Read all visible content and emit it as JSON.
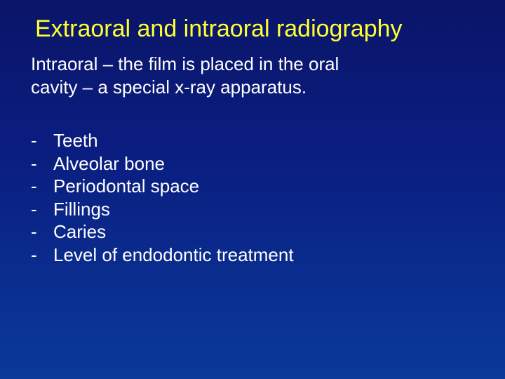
{
  "title": "Extraoral and intraoral radiography",
  "intro_line1": "Intraoral – the film is placed in the oral",
  "intro_line2": "cavity – a special x-ray apparatus.",
  "bullet_char": "-",
  "items": {
    "i0": "Teeth",
    "i1": "Alveolar bone",
    "i2": "Periodontal space",
    "i3": "Fillings",
    "i4": "Caries",
    "i5": "Level of endodontic treatment"
  },
  "colors": {
    "title": "#ffff33",
    "text": "#ffffff",
    "bg_top": "#0a1568",
    "bg_bottom": "#0a3a9a"
  },
  "fontsize": {
    "title": 34,
    "body": 26
  }
}
